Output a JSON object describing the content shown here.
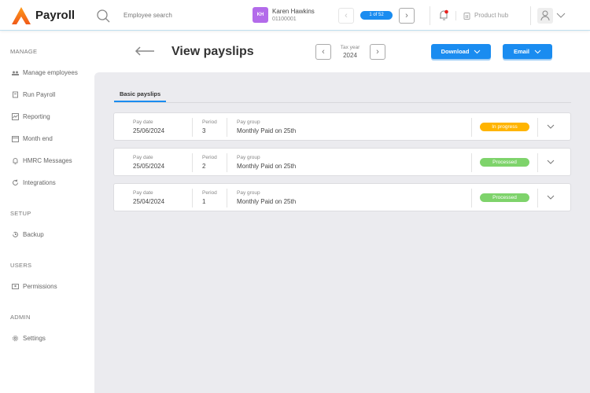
{
  "header": {
    "app_name": "Payroll",
    "search_placeholder": "Employee search",
    "employee": {
      "initials": "KH",
      "name": "Karen Hawkins",
      "id": "01100001"
    },
    "pager": "1 of 52",
    "product_hub": "Product hub",
    "accent": "#1a8cf0"
  },
  "sidebar": {
    "sections": [
      {
        "heading": "MANAGE",
        "items": [
          {
            "label": "Manage employees",
            "icon": "users-icon"
          },
          {
            "label": "Run Payroll",
            "icon": "payroll-icon"
          },
          {
            "label": "Reporting",
            "icon": "chart-icon"
          },
          {
            "label": "Month end",
            "icon": "calendar-icon"
          },
          {
            "label": "HMRC Messages",
            "icon": "bell-icon"
          },
          {
            "label": "Integrations",
            "icon": "sync-icon"
          }
        ]
      },
      {
        "heading": "SETUP",
        "items": [
          {
            "label": "Backup",
            "icon": "history-icon"
          }
        ]
      },
      {
        "heading": "USERS",
        "items": [
          {
            "label": "Permissions",
            "icon": "id-card-icon"
          }
        ]
      },
      {
        "heading": "ADMIN",
        "items": [
          {
            "label": "Settings",
            "icon": "gear-icon"
          }
        ]
      }
    ]
  },
  "page": {
    "title": "View payslips",
    "tax_year_label": "Tax year",
    "tax_year": "2024",
    "download": "Download",
    "email": "Email",
    "tab": "Basic payslips"
  },
  "payslips": [
    {
      "pay_date_label": "Pay date",
      "pay_date": "25/06/2024",
      "period_label": "Period",
      "period": "3",
      "group_label": "Pay group",
      "group": "Monthly Paid on 25th",
      "status": "In progress",
      "status_color": "#ffb400"
    },
    {
      "pay_date_label": "Pay date",
      "pay_date": "25/05/2024",
      "period_label": "Period",
      "period": "2",
      "group_label": "Pay group",
      "group": "Monthly Paid on 25th",
      "status": "Processed",
      "status_color": "#7ed36b"
    },
    {
      "pay_date_label": "Pay date",
      "pay_date": "25/04/2024",
      "period_label": "Period",
      "period": "1",
      "group_label": "Pay group",
      "group": "Monthly Paid on 25th",
      "status": "Processed",
      "status_color": "#7ed36b"
    }
  ]
}
